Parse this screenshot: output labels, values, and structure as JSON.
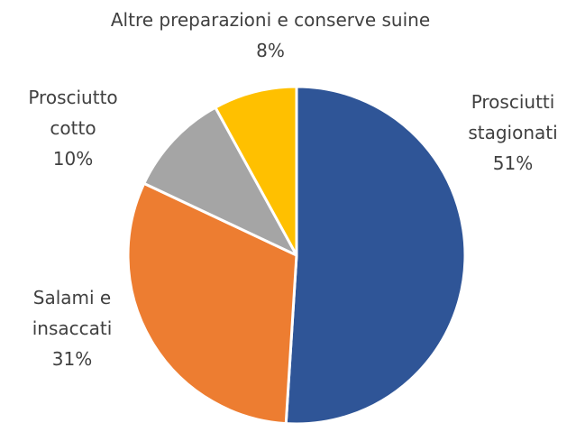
{
  "chart_data": {
    "type": "pie",
    "categories": [
      "Prosciutti stagionati",
      "Salami e insaccati",
      "Prosciutto cotto",
      "Altre preparazioni e conserve suine"
    ],
    "values": [
      51,
      31,
      10,
      8
    ],
    "value_labels": [
      "51%",
      "31%",
      "10%",
      "8%"
    ],
    "colors": [
      "#2f5597",
      "#ed7d31",
      "#a5a5a5",
      "#ffc000"
    ]
  }
}
